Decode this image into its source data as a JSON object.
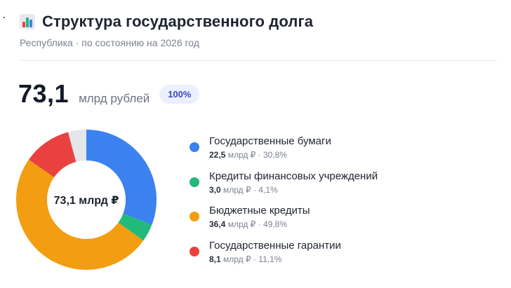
{
  "header": {
    "title": "Структура государственного долга",
    "subtitle": "Республика · по состоянию на 2026 год",
    "icon": "bar-chart-icon"
  },
  "summary": {
    "total_value": "73,1",
    "total_unit": "млрд рублей",
    "percent_badge": "100%"
  },
  "chart_data": {
    "type": "pie",
    "center_label": "73,1 млрд ₽",
    "categories": [
      "Государственные бумаги",
      "Кредиты финансовых учреждений",
      "Бюджетные кредиты",
      "Государственные гарантии"
    ],
    "values": [
      22.5,
      3.0,
      36.4,
      8.1
    ],
    "percents": [
      30.8,
      4.1,
      49.8,
      11.1
    ],
    "colors": [
      "#3b82f0",
      "#22b97a",
      "#f29d12",
      "#e8413f"
    ],
    "remainder_color": "#e4e6ea"
  },
  "legend": {
    "items": [
      {
        "name": "Государственные бумаги",
        "value": "22,5",
        "meta": " млрд ₽ · 30,8%",
        "color": "#3b82f0"
      },
      {
        "name": "Кредиты финансовых учреждений",
        "value": "3,0",
        "meta": " млрд ₽ · 4,1%",
        "color": "#22b97a"
      },
      {
        "name": "Бюджетные кредиты",
        "value": "36,4",
        "meta": " млрд ₽ · 49,8%",
        "color": "#f29d12"
      },
      {
        "name": "Государственные гарантии",
        "value": "8,1",
        "meta": " млрд ₽ · 11,1%",
        "color": "#e8413f"
      }
    ]
  }
}
